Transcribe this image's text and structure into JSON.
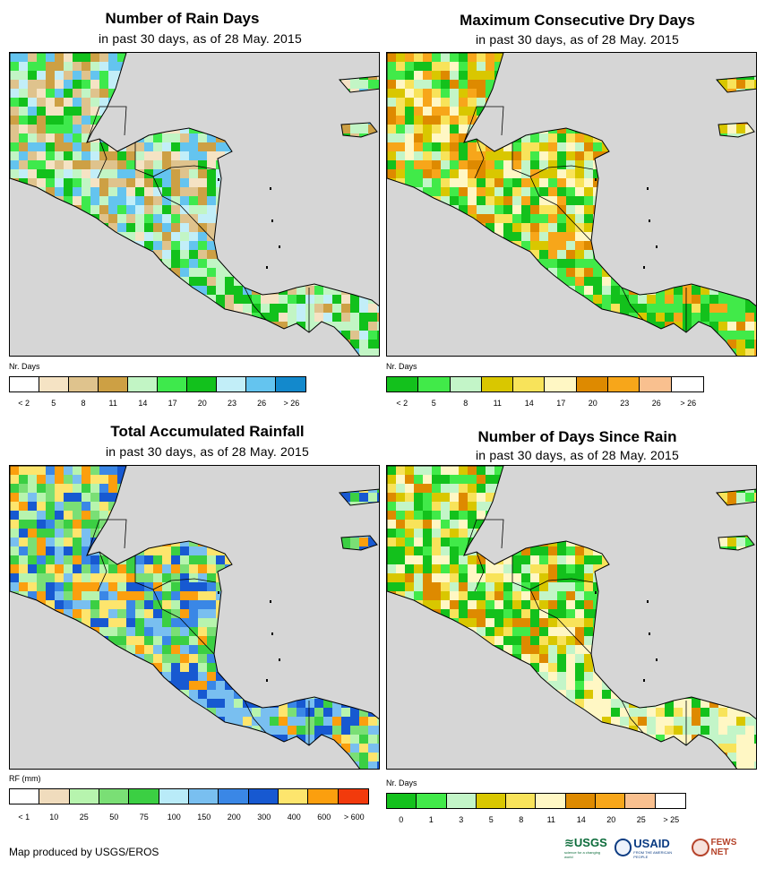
{
  "panels": [
    {
      "id": "rain-days",
      "title": "Number of Rain Days",
      "subtitle": "in past 30 days, as of 28 May. 2015",
      "legend_label": "Nr. Days",
      "legend_colors": [
        "#ffffff",
        "#f5e3c4",
        "#dfc38d",
        "#cda044",
        "#c2f5c5",
        "#3ee94c",
        "#12c11c",
        "#c2eef8",
        "#64c4ef",
        "#1389cc"
      ],
      "legend_ticks": [
        "< 2",
        "5",
        "8",
        "11",
        "14",
        "17",
        "20",
        "23",
        "26",
        "> 26"
      ]
    },
    {
      "id": "max-consecutive-dry-days",
      "title": "Maximum Consecutive Dry Days",
      "subtitle": "in past 30 days, as of 28 May. 2015",
      "legend_label": "Nr. Days",
      "legend_colors": [
        "#13c11c",
        "#41ea49",
        "#c3f5c8",
        "#d9c700",
        "#f8e35a",
        "#fff7c4",
        "#de8a00",
        "#f7a61a",
        "#f9c08f",
        "#ffffff"
      ],
      "legend_ticks": [
        "< 2",
        "5",
        "8",
        "11",
        "14",
        "17",
        "20",
        "23",
        "26",
        "> 26"
      ]
    },
    {
      "id": "total-accumulated-rainfall",
      "title": "Total Accumulated Rainfall",
      "subtitle": "in past 30 days, as of 28 May. 2015",
      "legend_label": "RF (mm)",
      "legend_colors": [
        "#ffffff",
        "#f0dcbd",
        "#b7f4ae",
        "#7adf75",
        "#3bcf43",
        "#b9ebf8",
        "#79bff0",
        "#3a87e6",
        "#1759d1",
        "#fde56d",
        "#fb9f0e",
        "#f23a0c"
      ],
      "legend_ticks": [
        "< 1",
        "10",
        "25",
        "50",
        "75",
        "100",
        "150",
        "200",
        "300",
        "400",
        "600",
        "> 600"
      ]
    },
    {
      "id": "days-since-rain",
      "title": "Number of Days Since Rain",
      "subtitle": "in past 30 days, as of 28 May. 2015",
      "legend_label": "Nr. Days",
      "legend_colors": [
        "#13c11c",
        "#41ea49",
        "#c3f5c8",
        "#d9c700",
        "#f8e35a",
        "#fff7c4",
        "#de8a00",
        "#f7a61a",
        "#f9c08f",
        "#ffffff"
      ],
      "legend_ticks": [
        "0",
        "1",
        "3",
        "5",
        "8",
        "11",
        "14",
        "20",
        "25",
        "> 25"
      ]
    }
  ],
  "footer": "Map produced by USGS/EROS",
  "logos": {
    "usgs": "≋USGS",
    "usgs_tagline": "science for a changing world",
    "usaid": "USAID",
    "usaid_tagline": "FROM THE AMERICAN PEOPLE",
    "fews": "FEWS NET"
  }
}
